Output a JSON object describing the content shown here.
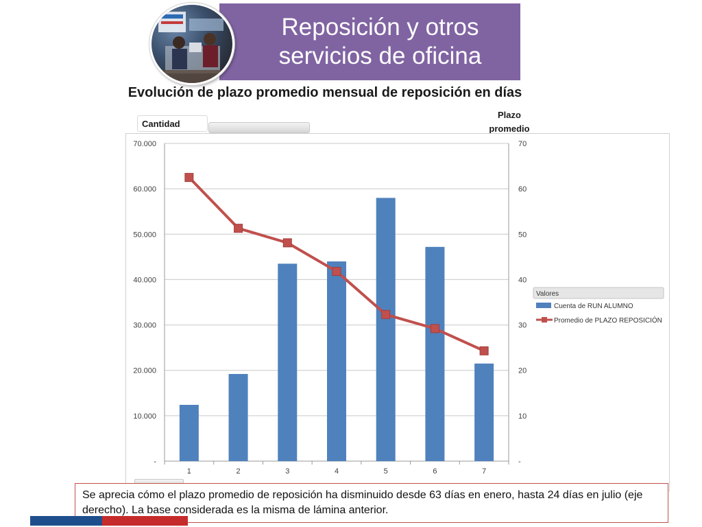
{
  "header": {
    "title": "Reposición y otros servicios de oficina"
  },
  "chart_data": {
    "type": "bar",
    "title": "Evolución de plazo promedio mensual de reposición en días",
    "left_axis_label": "Cantidad",
    "right_axis_label": "Plazo promedio",
    "categories": [
      "1",
      "2",
      "3",
      "4",
      "5",
      "6",
      "7"
    ],
    "series": [
      {
        "name": "Cuenta de RUN ALUMNO",
        "type": "bar",
        "axis": "left",
        "color": "#4f81bd",
        "values": [
          12400,
          19200,
          43500,
          44000,
          58000,
          47200,
          21500
        ]
      },
      {
        "name": "Promedio de PLAZO REPOSICIÓN",
        "type": "line",
        "axis": "right",
        "color": "#c0504d",
        "values": [
          62.5,
          51.3,
          48.1,
          41.8,
          32.3,
          29.2,
          24.3
        ]
      }
    ],
    "ylim_left": [
      0,
      70000
    ],
    "ylim_right": [
      0,
      70
    ],
    "yticks_left": [
      "-",
      "10.000",
      "20.000",
      "30.000",
      "40.000",
      "50.000",
      "60.000",
      "70.000"
    ],
    "yticks_right": [
      "-",
      "10",
      "20",
      "30",
      "40",
      "50",
      "60",
      "70"
    ],
    "legend": {
      "title": "Valores",
      "position": "right"
    },
    "grid": true
  },
  "note": {
    "text": "Se aprecia cómo el plazo promedio de reposición ha disminuido desde 63 días en enero, hasta 24 días en julio (eje derecho).  La base considerada es la misma de lámina anterior."
  },
  "colors": {
    "banner": "#8064a2",
    "bar": "#4f81bd",
    "line": "#c0504d",
    "note_border": "#c0504d",
    "footer_blue": "#1f4e8c",
    "footer_red": "#c62b2b"
  }
}
